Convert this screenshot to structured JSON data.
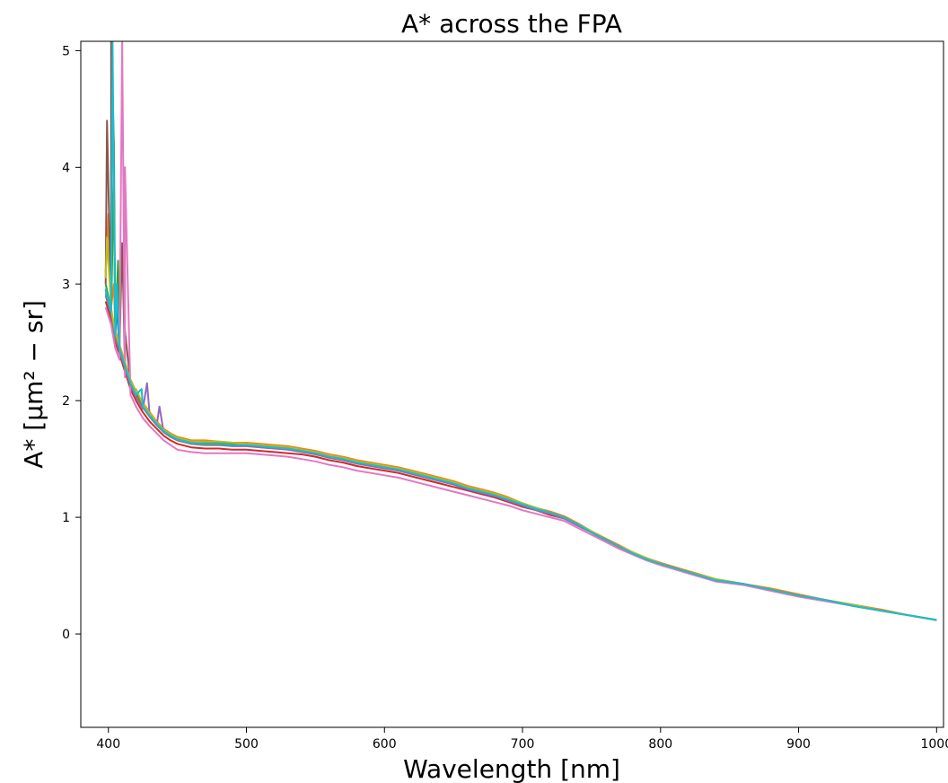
{
  "chart_data": {
    "type": "line",
    "title": "A* across the FPA",
    "xlabel": "Wavelength [nm]",
    "ylabel": "A* [μm² − sr]",
    "xlim": [
      380,
      1005
    ],
    "ylim": [
      -0.8,
      5.08
    ],
    "xticks": [
      400,
      500,
      600,
      700,
      800,
      900,
      1000
    ],
    "yticks": [
      0,
      1,
      2,
      3,
      4,
      5
    ],
    "grid": false,
    "legend": "none",
    "x": [
      398,
      402,
      405,
      408,
      412,
      416,
      420,
      425,
      430,
      435,
      440,
      445,
      450,
      460,
      470,
      480,
      490,
      500,
      510,
      520,
      530,
      540,
      550,
      560,
      570,
      580,
      590,
      600,
      610,
      620,
      630,
      640,
      650,
      660,
      670,
      680,
      690,
      700,
      710,
      720,
      730,
      740,
      750,
      760,
      770,
      780,
      790,
      800,
      820,
      840,
      860,
      880,
      900,
      920,
      940,
      960,
      980,
      1000
    ],
    "series": [
      {
        "color": "#1f77b4",
        "spike": [
          [
            406,
            2.8
          ],
          [
            408,
            2.4
          ]
        ],
        "y": [
          2.95,
          2.75,
          2.55,
          2.45,
          2.3,
          2.15,
          2.05,
          1.95,
          1.87,
          1.8,
          1.74,
          1.7,
          1.67,
          1.64,
          1.63,
          1.63,
          1.62,
          1.62,
          1.61,
          1.6,
          1.59,
          1.57,
          1.55,
          1.52,
          1.5,
          1.47,
          1.45,
          1.43,
          1.41,
          1.38,
          1.35,
          1.32,
          1.29,
          1.25,
          1.22,
          1.19,
          1.15,
          1.11,
          1.07,
          1.04,
          1.0,
          0.94,
          0.87,
          0.81,
          0.75,
          0.69,
          0.64,
          0.6,
          0.53,
          0.46,
          0.43,
          0.38,
          0.33,
          0.29,
          0.24,
          0.2,
          0.16,
          0.12
        ]
      },
      {
        "color": "#ff7f0e",
        "spike": [
          [
            400,
            3.6
          ],
          [
            404,
            3.0
          ]
        ],
        "y": [
          3.1,
          2.8,
          2.6,
          2.48,
          2.33,
          2.18,
          2.08,
          1.98,
          1.9,
          1.82,
          1.76,
          1.72,
          1.69,
          1.66,
          1.66,
          1.65,
          1.64,
          1.64,
          1.63,
          1.62,
          1.61,
          1.59,
          1.57,
          1.54,
          1.52,
          1.49,
          1.47,
          1.45,
          1.43,
          1.4,
          1.37,
          1.34,
          1.31,
          1.27,
          1.24,
          1.21,
          1.17,
          1.12,
          1.08,
          1.05,
          1.01,
          0.95,
          0.88,
          0.82,
          0.76,
          0.7,
          0.65,
          0.61,
          0.54,
          0.47,
          0.43,
          0.39,
          0.34,
          0.29,
          0.25,
          0.21,
          0.16,
          0.12
        ]
      },
      {
        "color": "#2ca02c",
        "spike": [
          [
            404,
            3.9
          ],
          [
            407,
            3.2
          ],
          [
            418,
            2.05
          ]
        ],
        "y": [
          3.0,
          2.78,
          2.58,
          2.46,
          2.31,
          2.16,
          2.06,
          1.96,
          1.88,
          1.8,
          1.75,
          1.71,
          1.68,
          1.65,
          1.64,
          1.64,
          1.63,
          1.63,
          1.62,
          1.61,
          1.6,
          1.58,
          1.56,
          1.53,
          1.51,
          1.48,
          1.46,
          1.44,
          1.42,
          1.39,
          1.36,
          1.33,
          1.3,
          1.26,
          1.23,
          1.2,
          1.16,
          1.12,
          1.08,
          1.04,
          1.0,
          0.94,
          0.88,
          0.81,
          0.75,
          0.69,
          0.65,
          0.6,
          0.53,
          0.47,
          0.43,
          0.38,
          0.33,
          0.29,
          0.25,
          0.2,
          0.16,
          0.12
        ]
      },
      {
        "color": "#d62728",
        "spike": [],
        "y": [
          2.85,
          2.7,
          2.5,
          2.4,
          2.25,
          2.1,
          2.0,
          1.9,
          1.82,
          1.76,
          1.7,
          1.66,
          1.63,
          1.6,
          1.59,
          1.59,
          1.58,
          1.58,
          1.57,
          1.56,
          1.55,
          1.54,
          1.52,
          1.49,
          1.47,
          1.44,
          1.42,
          1.4,
          1.38,
          1.35,
          1.32,
          1.29,
          1.26,
          1.23,
          1.2,
          1.17,
          1.13,
          1.09,
          1.06,
          1.02,
          0.99,
          0.93,
          0.87,
          0.8,
          0.74,
          0.69,
          0.64,
          0.6,
          0.53,
          0.46,
          0.43,
          0.38,
          0.33,
          0.29,
          0.24,
          0.2,
          0.16,
          0.12
        ]
      },
      {
        "color": "#9467bd",
        "spike": [
          [
            428,
            2.15
          ],
          [
            437,
            1.95
          ]
        ],
        "y": [
          2.9,
          2.74,
          2.53,
          2.43,
          2.28,
          2.13,
          2.03,
          1.93,
          1.86,
          1.79,
          1.73,
          1.69,
          1.66,
          1.63,
          1.62,
          1.62,
          1.61,
          1.61,
          1.6,
          1.59,
          1.58,
          1.56,
          1.54,
          1.51,
          1.49,
          1.46,
          1.44,
          1.42,
          1.4,
          1.37,
          1.34,
          1.31,
          1.28,
          1.24,
          1.21,
          1.18,
          1.14,
          1.1,
          1.06,
          1.03,
          0.99,
          0.93,
          0.87,
          0.8,
          0.75,
          0.69,
          0.64,
          0.6,
          0.53,
          0.46,
          0.43,
          0.38,
          0.33,
          0.29,
          0.24,
          0.2,
          0.16,
          0.12
        ]
      },
      {
        "color": "#8c564b",
        "spike": [
          [
            399,
            4.4
          ],
          [
            402,
            5.08
          ],
          [
            404,
            4.2
          ],
          [
            410,
            3.35
          ],
          [
            412,
            2.6
          ]
        ],
        "y": [
          3.0,
          2.76,
          2.56,
          2.45,
          2.3,
          2.15,
          2.05,
          1.95,
          1.87,
          1.8,
          1.74,
          1.7,
          1.67,
          1.64,
          1.63,
          1.63,
          1.62,
          1.62,
          1.61,
          1.6,
          1.59,
          1.57,
          1.55,
          1.52,
          1.5,
          1.47,
          1.45,
          1.43,
          1.41,
          1.38,
          1.35,
          1.32,
          1.29,
          1.25,
          1.22,
          1.19,
          1.15,
          1.11,
          1.07,
          1.04,
          1.0,
          0.94,
          0.87,
          0.81,
          0.75,
          0.69,
          0.64,
          0.6,
          0.53,
          0.46,
          0.43,
          0.38,
          0.33,
          0.29,
          0.24,
          0.2,
          0.16,
          0.12
        ]
      },
      {
        "color": "#e377c2",
        "spike": [
          [
            410,
            5.08
          ],
          [
            412,
            4.0
          ]
        ],
        "y": [
          2.8,
          2.65,
          2.45,
          2.35,
          2.2,
          2.05,
          1.95,
          1.85,
          1.78,
          1.72,
          1.66,
          1.62,
          1.58,
          1.56,
          1.55,
          1.55,
          1.55,
          1.55,
          1.54,
          1.53,
          1.52,
          1.5,
          1.48,
          1.45,
          1.43,
          1.4,
          1.38,
          1.36,
          1.34,
          1.31,
          1.28,
          1.25,
          1.22,
          1.19,
          1.16,
          1.13,
          1.1,
          1.06,
          1.03,
          1.0,
          0.97,
          0.91,
          0.85,
          0.79,
          0.73,
          0.68,
          0.63,
          0.59,
          0.52,
          0.45,
          0.42,
          0.37,
          0.32,
          0.28,
          0.24,
          0.2,
          0.16,
          0.12
        ]
      },
      {
        "color": "#7f7f7f",
        "spike": [],
        "y": [
          2.92,
          2.74,
          2.54,
          2.44,
          2.29,
          2.14,
          2.04,
          1.94,
          1.86,
          1.79,
          1.73,
          1.69,
          1.66,
          1.63,
          1.62,
          1.62,
          1.62,
          1.62,
          1.61,
          1.6,
          1.59,
          1.57,
          1.55,
          1.52,
          1.5,
          1.47,
          1.45,
          1.43,
          1.41,
          1.38,
          1.35,
          1.32,
          1.29,
          1.25,
          1.22,
          1.19,
          1.15,
          1.11,
          1.07,
          1.04,
          1.0,
          0.94,
          0.87,
          0.81,
          0.75,
          0.69,
          0.64,
          0.6,
          0.53,
          0.46,
          0.43,
          0.38,
          0.33,
          0.29,
          0.24,
          0.2,
          0.16,
          0.12
        ]
      },
      {
        "color": "#bcbd22",
        "spike": [
          [
            399,
            3.4
          ],
          [
            420,
            2.1
          ]
        ],
        "y": [
          3.05,
          2.79,
          2.59,
          2.47,
          2.32,
          2.17,
          2.07,
          1.97,
          1.89,
          1.81,
          1.75,
          1.71,
          1.68,
          1.65,
          1.65,
          1.65,
          1.64,
          1.63,
          1.62,
          1.61,
          1.6,
          1.58,
          1.56,
          1.53,
          1.51,
          1.48,
          1.46,
          1.44,
          1.42,
          1.39,
          1.36,
          1.33,
          1.3,
          1.26,
          1.23,
          1.2,
          1.16,
          1.12,
          1.08,
          1.04,
          1.0,
          0.94,
          0.88,
          0.81,
          0.75,
          0.7,
          0.65,
          0.6,
          0.53,
          0.47,
          0.43,
          0.38,
          0.33,
          0.29,
          0.25,
          0.2,
          0.16,
          0.12
        ]
      },
      {
        "color": "#17becf",
        "spike": [
          [
            403,
            5.08
          ],
          [
            406,
            3.0
          ],
          [
            424,
            2.1
          ]
        ],
        "y": [
          2.96,
          2.76,
          2.56,
          2.45,
          2.3,
          2.15,
          2.05,
          1.95,
          1.87,
          1.8,
          1.74,
          1.7,
          1.67,
          1.64,
          1.63,
          1.63,
          1.62,
          1.62,
          1.61,
          1.6,
          1.59,
          1.57,
          1.55,
          1.52,
          1.5,
          1.47,
          1.45,
          1.43,
          1.41,
          1.38,
          1.35,
          1.32,
          1.29,
          1.25,
          1.22,
          1.19,
          1.15,
          1.11,
          1.07,
          1.04,
          1.0,
          0.94,
          0.87,
          0.81,
          0.75,
          0.69,
          0.64,
          0.6,
          0.53,
          0.46,
          0.43,
          0.38,
          0.33,
          0.29,
          0.24,
          0.2,
          0.16,
          0.12
        ]
      }
    ]
  }
}
